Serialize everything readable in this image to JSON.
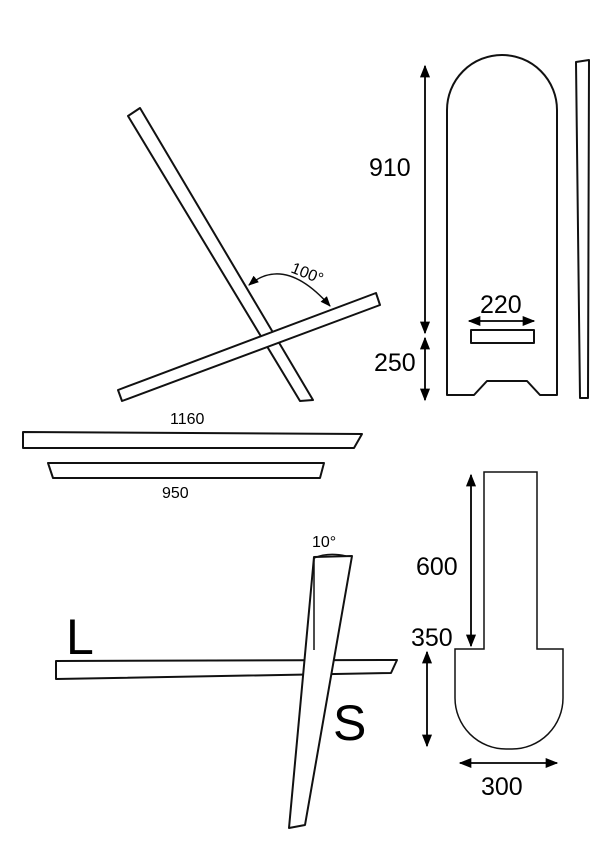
{
  "colors": {
    "stroke": "#111111",
    "background": "#ffffff"
  },
  "labels": {
    "angle_top": "100°",
    "plank_long_length": "1160",
    "plank_short_length": "950",
    "angle_bottom": "10°",
    "letter_L": "L",
    "letter_S": "S",
    "back_height": "910",
    "back_slot_height": "250",
    "back_slot_width": "220",
    "seat_neck_height": "600",
    "seat_base_height": "350",
    "seat_base_width": "300"
  }
}
